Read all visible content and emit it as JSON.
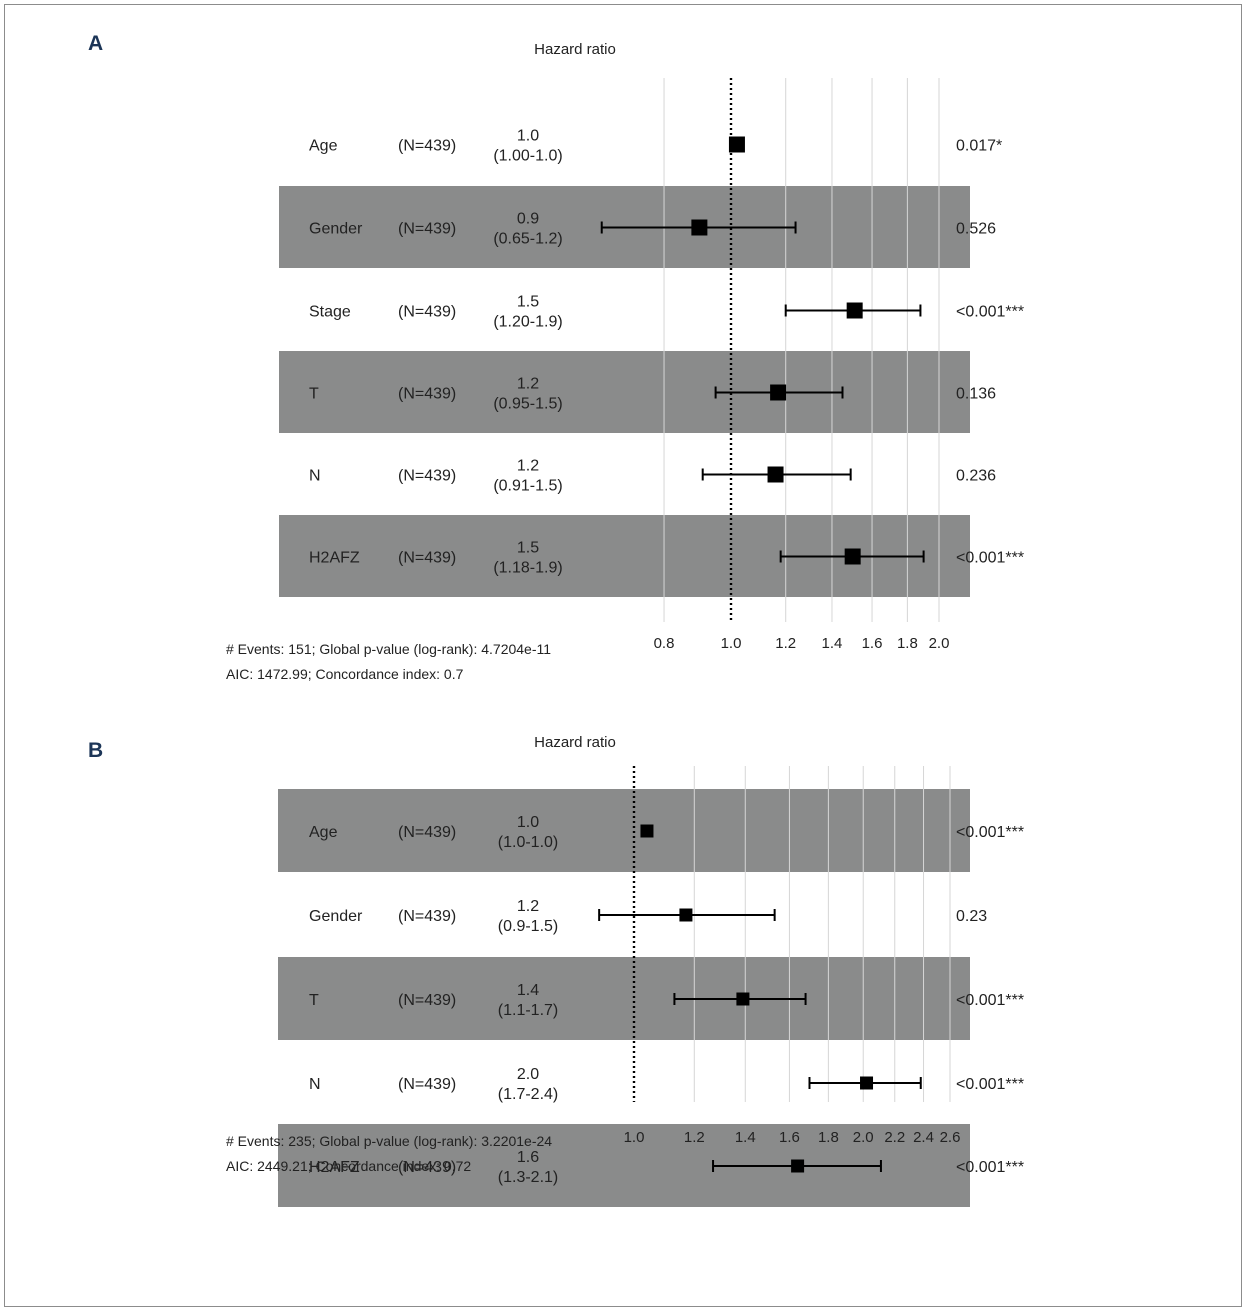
{
  "chart_data": [
    {
      "type": "forest",
      "panel": "A",
      "title": "Hazard ratio",
      "x_ticks": [
        0.8,
        1.0,
        1.2,
        1.4,
        1.6,
        1.8,
        2.0
      ],
      "x_tick_labels": [
        "0.8",
        "1.0",
        "1.2",
        "1.4",
        "1.6",
        "1.8",
        "2.0"
      ],
      "xlim": [
        0.66,
        2.1
      ],
      "log_scale": true,
      "reference_line": 1.0,
      "rows": [
        {
          "variable": "Age",
          "n_label": "(N=439)",
          "hr_label": "1.0",
          "ci_label": "(1.00-1.0)",
          "hr": 1.02,
          "ci_low": 1.02,
          "ci_high": 1.02,
          "p_label": "0.017*",
          "shaded": false
        },
        {
          "variable": "Gender",
          "n_label": "(N=439)",
          "hr_label": "0.9",
          "ci_label": "(0.65-1.2)",
          "hr": 0.9,
          "ci_low": 0.65,
          "ci_high": 1.24,
          "p_label": "0.526",
          "shaded": true
        },
        {
          "variable": "Stage",
          "n_label": "(N=439)",
          "hr_label": "1.5",
          "ci_label": "(1.20-1.9)",
          "hr": 1.51,
          "ci_low": 1.2,
          "ci_high": 1.88,
          "p_label": "<0.001***",
          "shaded": false
        },
        {
          "variable": "T",
          "n_label": "(N=439)",
          "hr_label": "1.2",
          "ci_label": "(0.95-1.5)",
          "hr": 1.17,
          "ci_low": 0.95,
          "ci_high": 1.45,
          "p_label": "0.136",
          "shaded": true
        },
        {
          "variable": "N",
          "n_label": "(N=439)",
          "hr_label": "1.2",
          "ci_label": "(0.91-1.5)",
          "hr": 1.16,
          "ci_low": 0.91,
          "ci_high": 1.49,
          "p_label": "0.236",
          "shaded": false
        },
        {
          "variable": "H2AFZ",
          "n_label": "(N=439)",
          "hr_label": "1.5",
          "ci_label": "(1.18-1.9)",
          "hr": 1.5,
          "ci_low": 1.18,
          "ci_high": 1.9,
          "p_label": "<0.001***",
          "shaded": true
        }
      ],
      "footnote_lines": [
        "# Events: 151; Global p-value (log-rank): 4.7204e-11",
        "AIC: 1472.99; Concordance index: 0.7"
      ]
    },
    {
      "type": "forest",
      "panel": "B",
      "title": "Hazard ratio",
      "x_ticks": [
        1.0,
        1.2,
        1.4,
        1.6,
        1.8,
        2.0,
        2.2,
        2.4,
        2.6
      ],
      "x_tick_labels": [
        "1.0",
        "1.2",
        "1.4",
        "1.6",
        "1.8",
        "2.0",
        "2.2",
        "2.4",
        "2.6"
      ],
      "xlim": [
        0.86,
        2.75
      ],
      "log_scale": true,
      "reference_line": 1.0,
      "rows": [
        {
          "variable": "Age",
          "n_label": "(N=439)",
          "hr_label": "1.0",
          "ci_label": "(1.0-1.0)",
          "hr": 1.04,
          "ci_low": 1.03,
          "ci_high": 1.05,
          "p_label": "<0.001***",
          "shaded": true
        },
        {
          "variable": "Gender",
          "n_label": "(N=439)",
          "hr_label": "1.2",
          "ci_label": "(0.9-1.5)",
          "hr": 1.17,
          "ci_low": 0.9,
          "ci_high": 1.53,
          "p_label": "0.23",
          "shaded": false
        },
        {
          "variable": "T",
          "n_label": "(N=439)",
          "hr_label": "1.4",
          "ci_label": "(1.1-1.7)",
          "hr": 1.39,
          "ci_low": 1.13,
          "ci_high": 1.68,
          "p_label": "<0.001***",
          "shaded": true
        },
        {
          "variable": "N",
          "n_label": "(N=439)",
          "hr_label": "2.0",
          "ci_label": "(1.7-2.4)",
          "hr": 2.02,
          "ci_low": 1.7,
          "ci_high": 2.38,
          "p_label": "<0.001***",
          "shaded": false
        },
        {
          "variable": "H2AFZ",
          "n_label": "(N=439)",
          "hr_label": "1.6",
          "ci_label": "(1.3-2.1)",
          "hr": 1.64,
          "ci_low": 1.27,
          "ci_high": 2.11,
          "p_label": "<0.001***",
          "shaded": true
        }
      ],
      "footnote_lines": [
        "# Events: 235; Global p-value (log-rank): 3.2201e-24",
        "AIC: 2449.21; Concordance index: 0.72"
      ]
    }
  ],
  "colors": {
    "row_shade": "#8a8b8b",
    "grid": "#d6d6d6",
    "marker": "#000000",
    "text": "#222222",
    "panel_letter": "#1c3557"
  }
}
